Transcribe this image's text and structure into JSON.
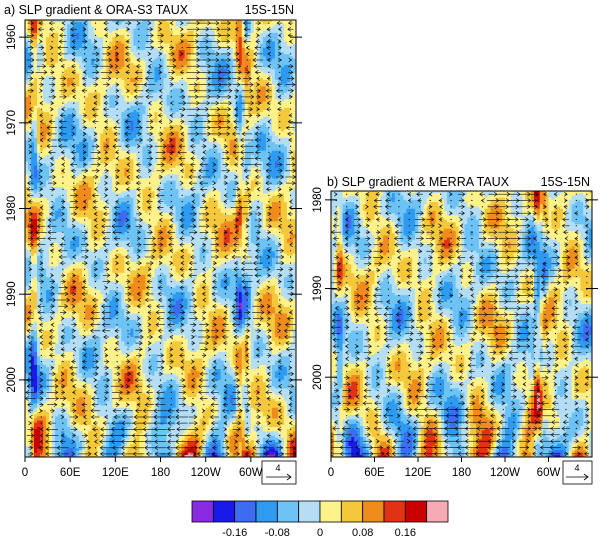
{
  "chart_data": [
    {
      "type": "heatmap",
      "title": "a) SLP gradient & ORA-S3 TAUX",
      "region_label": "15S-15N",
      "x_ticks": [
        "0",
        "60E",
        "120E",
        "180",
        "120W",
        "60W"
      ],
      "x_tick_values": [
        0,
        60,
        120,
        180,
        240,
        300
      ],
      "xlim": [
        0,
        360
      ],
      "y_ticks": [
        "1960",
        "1970",
        "1980",
        "1990",
        "2000"
      ],
      "y_tick_values": [
        1960,
        1970,
        1980,
        1990,
        2000
      ],
      "ylim": [
        1958,
        2009
      ],
      "reference_vector_label": "4",
      "vectors": "zonal wind-stress arrows overlaid"
    },
    {
      "type": "heatmap",
      "title": "b) SLP gradient & MERRA TAUX",
      "region_label": "15S-15N",
      "x_ticks": [
        "0",
        "60E",
        "120E",
        "180",
        "120W",
        "60W"
      ],
      "x_tick_values": [
        0,
        60,
        120,
        180,
        240,
        300
      ],
      "xlim": [
        0,
        360
      ],
      "y_ticks": [
        "1980",
        "1990",
        "2000"
      ],
      "y_tick_values": [
        1980,
        1990,
        2000
      ],
      "ylim": [
        1979,
        2009
      ],
      "reference_vector_label": "4",
      "vectors": "zonal wind-stress arrows overlaid"
    }
  ],
  "colorbar": {
    "levels": [
      -0.2,
      -0.16,
      -0.12,
      -0.08,
      -0.04,
      0,
      0.04,
      0.08,
      0.12,
      0.16,
      0.2
    ],
    "labels": [
      "-0.16",
      "-0.08",
      "0",
      "0.08",
      "0.16"
    ],
    "label_values": [
      -0.16,
      -0.08,
      0,
      0.08,
      0.16
    ],
    "colors": [
      "#8a2be2",
      "#1a1ae6",
      "#3c6cf0",
      "#2e9bf0",
      "#6ec3f5",
      "#b4def5",
      "#fff28a",
      "#f5c83c",
      "#f08c1e",
      "#e03214",
      "#c80000",
      "#f5aab4"
    ]
  }
}
